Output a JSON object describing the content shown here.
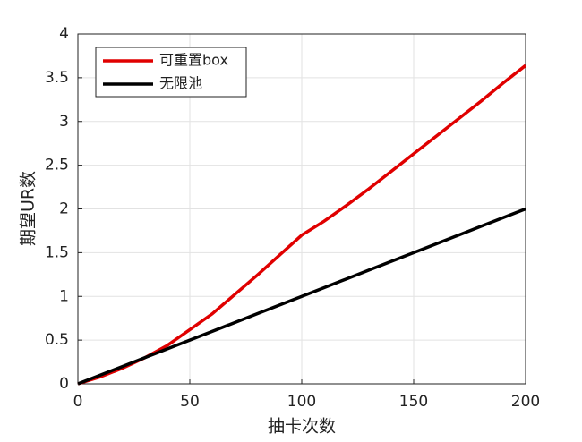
{
  "chart_data": {
    "type": "line",
    "x_label": "抽卡次数",
    "y_label": "期望UR数",
    "x": [
      0,
      10,
      20,
      30,
      40,
      50,
      60,
      70,
      80,
      90,
      100,
      110,
      120,
      130,
      140,
      150,
      160,
      170,
      180,
      190,
      200
    ],
    "series": [
      {
        "name": "可重置box",
        "color": "#e00000",
        "values": [
          0,
          0.08,
          0.18,
          0.3,
          0.44,
          0.62,
          0.8,
          1.02,
          1.24,
          1.47,
          1.7,
          1.86,
          2.04,
          2.23,
          2.43,
          2.63,
          2.83,
          3.03,
          3.23,
          3.44,
          3.64
        ]
      },
      {
        "name": "无限池",
        "color": "#000000",
        "values": [
          0,
          0.1,
          0.2,
          0.3,
          0.4,
          0.5,
          0.6,
          0.7,
          0.8,
          0.9,
          1,
          1.1,
          1.2,
          1.3,
          1.4,
          1.5,
          1.6,
          1.7,
          1.8,
          1.9,
          2
        ]
      }
    ],
    "xlim": [
      0,
      200
    ],
    "xticks": [
      0,
      50,
      100,
      150,
      200
    ],
    "ylim": [
      0,
      4
    ],
    "yticks": [
      0,
      0.5,
      1,
      1.5,
      2,
      2.5,
      3,
      3.5,
      4
    ],
    "grid": true,
    "legend_position": "upper-left"
  }
}
